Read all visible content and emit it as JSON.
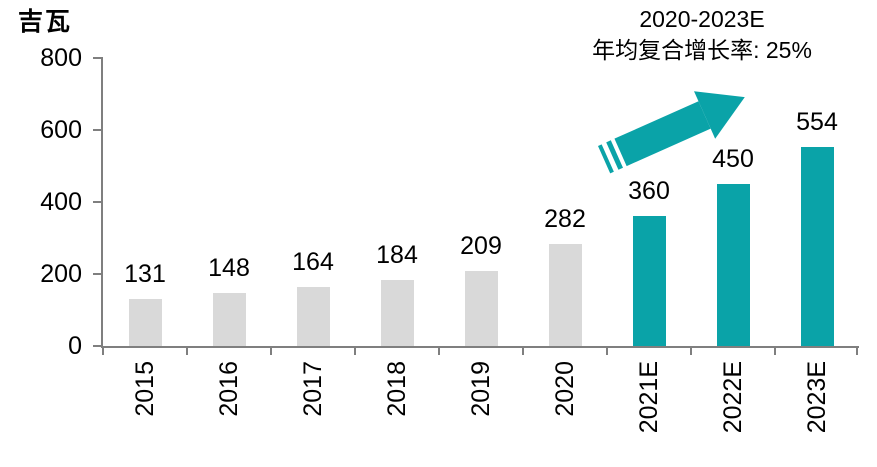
{
  "unit_label": "吉瓦",
  "annotation": {
    "line1": "2020-2023E",
    "line2": "年均复合增长率: 25%"
  },
  "chart_data": {
    "type": "bar",
    "title": "",
    "ylabel": "吉瓦",
    "xlabel": "",
    "categories": [
      "2015",
      "2016",
      "2017",
      "2018",
      "2019",
      "2020",
      "2021E",
      "2022E",
      "2023E"
    ],
    "values": [
      131,
      148,
      164,
      184,
      209,
      282,
      360,
      450,
      554
    ],
    "ylim": [
      0,
      800
    ],
    "yticks": [
      0,
      200,
      400,
      600,
      800
    ],
    "grid": false,
    "legend_position": "none",
    "forecast_start_index": 6,
    "annotation_text": "2020-2023E 年均复合增长率: 25%",
    "colors": {
      "historical_bar": "#d9d9d9",
      "forecast_bar": "#0aa3a8",
      "axis": "#7f7f7f",
      "arrow": "#0aa3a8",
      "text": "#000000"
    }
  }
}
